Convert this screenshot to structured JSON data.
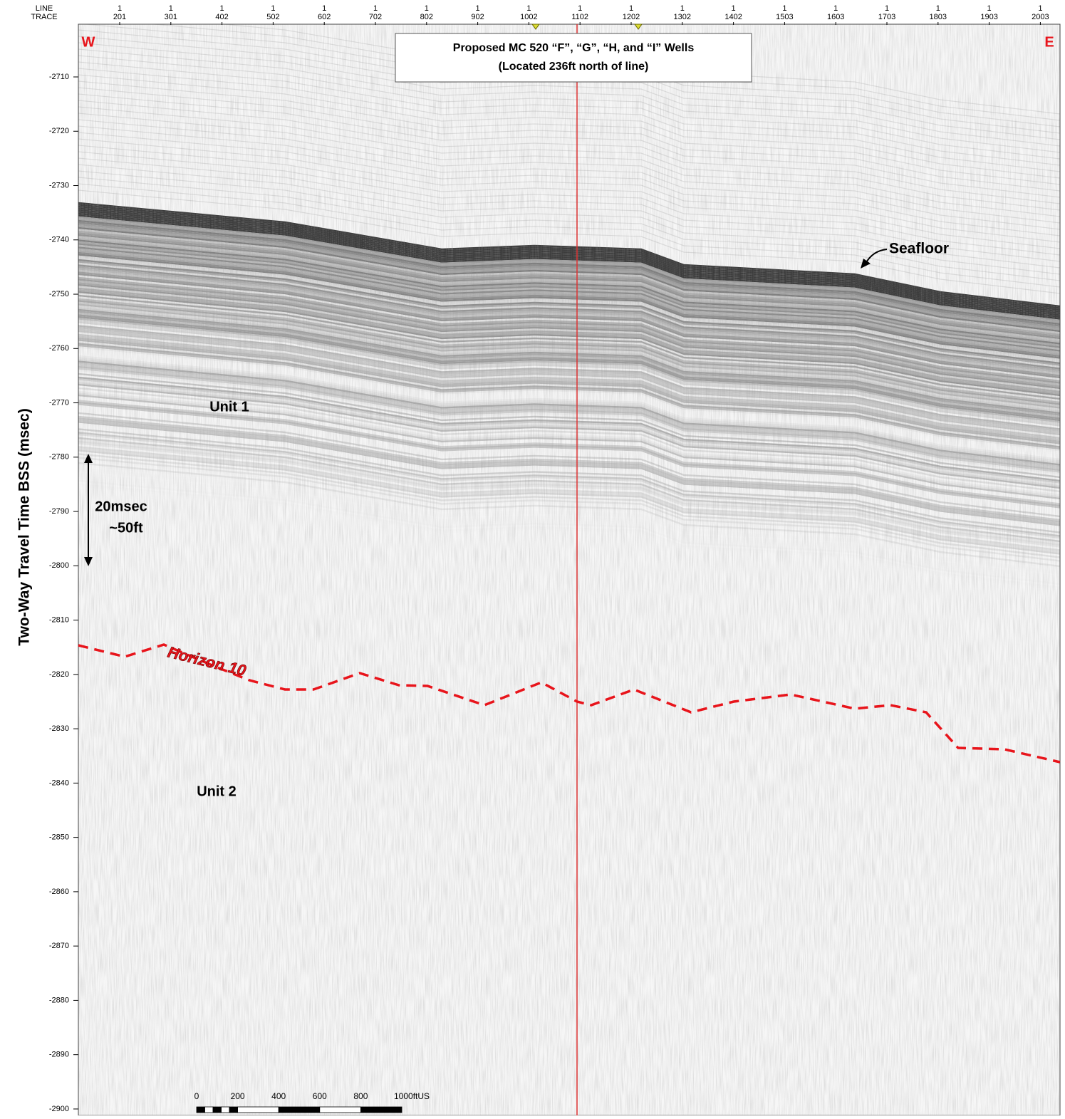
{
  "header": {
    "line_label": "LINE",
    "trace_label": "TRACE",
    "traces": [
      {
        "line": "1",
        "trace": "201"
      },
      {
        "line": "1",
        "trace": "301"
      },
      {
        "line": "1",
        "trace": "402"
      },
      {
        "line": "1",
        "trace": "502"
      },
      {
        "line": "1",
        "trace": "602"
      },
      {
        "line": "1",
        "trace": "702"
      },
      {
        "line": "1",
        "trace": "802"
      },
      {
        "line": "1",
        "trace": "902"
      },
      {
        "line": "1",
        "trace": "1002"
      },
      {
        "line": "1",
        "trace": "1102"
      },
      {
        "line": "1",
        "trace": "1202"
      },
      {
        "line": "1",
        "trace": "1302"
      },
      {
        "line": "1",
        "trace": "1402"
      },
      {
        "line": "1",
        "trace": "1503"
      },
      {
        "line": "1",
        "trace": "1603"
      },
      {
        "line": "1",
        "trace": "1703"
      },
      {
        "line": "1",
        "trace": "1803"
      },
      {
        "line": "1",
        "trace": "1903"
      },
      {
        "line": "1",
        "trace": "2003"
      }
    ]
  },
  "y_axis": {
    "title": "Two-Way Travel Time BSS (msec)",
    "ticks": [
      "-2710",
      "-2720",
      "-2730",
      "-2740",
      "-2750",
      "-2760",
      "-2770",
      "-2780",
      "-2790",
      "-2800",
      "-2810",
      "-2820",
      "-2830",
      "-2840",
      "-2850",
      "-2860",
      "-2870",
      "-2880",
      "-2890",
      "-2900"
    ]
  },
  "annotations": {
    "west": "W",
    "east": "E",
    "callout": [
      "Proposed MC 520 “F”, “G”, “H,  and “I” Wells",
      "(Located 236ft north of line)"
    ],
    "seafloor": "Seafloor",
    "unit1": "Unit 1",
    "unit2": "Unit 2",
    "horizon": "Horizon 10",
    "scale_v": [
      "20msec",
      "~50ft"
    ]
  },
  "scale_bar": {
    "labels": [
      "0",
      "200",
      "400",
      "600",
      "800",
      "1000ftUS"
    ]
  }
}
